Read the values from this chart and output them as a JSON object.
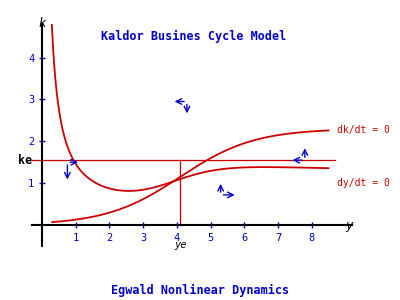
{
  "title": "Kaldor Busines Cycle Model",
  "footer": "Egwald Nonlinear Dynamics",
  "xlabel": "y",
  "ylabel": "k",
  "label_dkdt": "dk/dt = 0",
  "label_dydt": "dy/dt = 0",
  "label_ke": "ke",
  "label_ye": "ye",
  "ye": 4.1,
  "ke": 1.55,
  "xlim": [
    -0.3,
    9.2
  ],
  "ylim": [
    -0.5,
    4.8
  ],
  "xticks": [
    1,
    2,
    3,
    4,
    5,
    6,
    7,
    8
  ],
  "yticks": [
    1,
    2,
    3,
    4
  ],
  "bg_color": "#ffffff",
  "curve_color": "#cc0000",
  "axis_color": "#000000",
  "tick_color": "#0000cc",
  "title_color": "#0000cc",
  "arrow_color": "#0000cc",
  "ke_line_color": "#cc0000",
  "ye_line_color": "#cc0000"
}
